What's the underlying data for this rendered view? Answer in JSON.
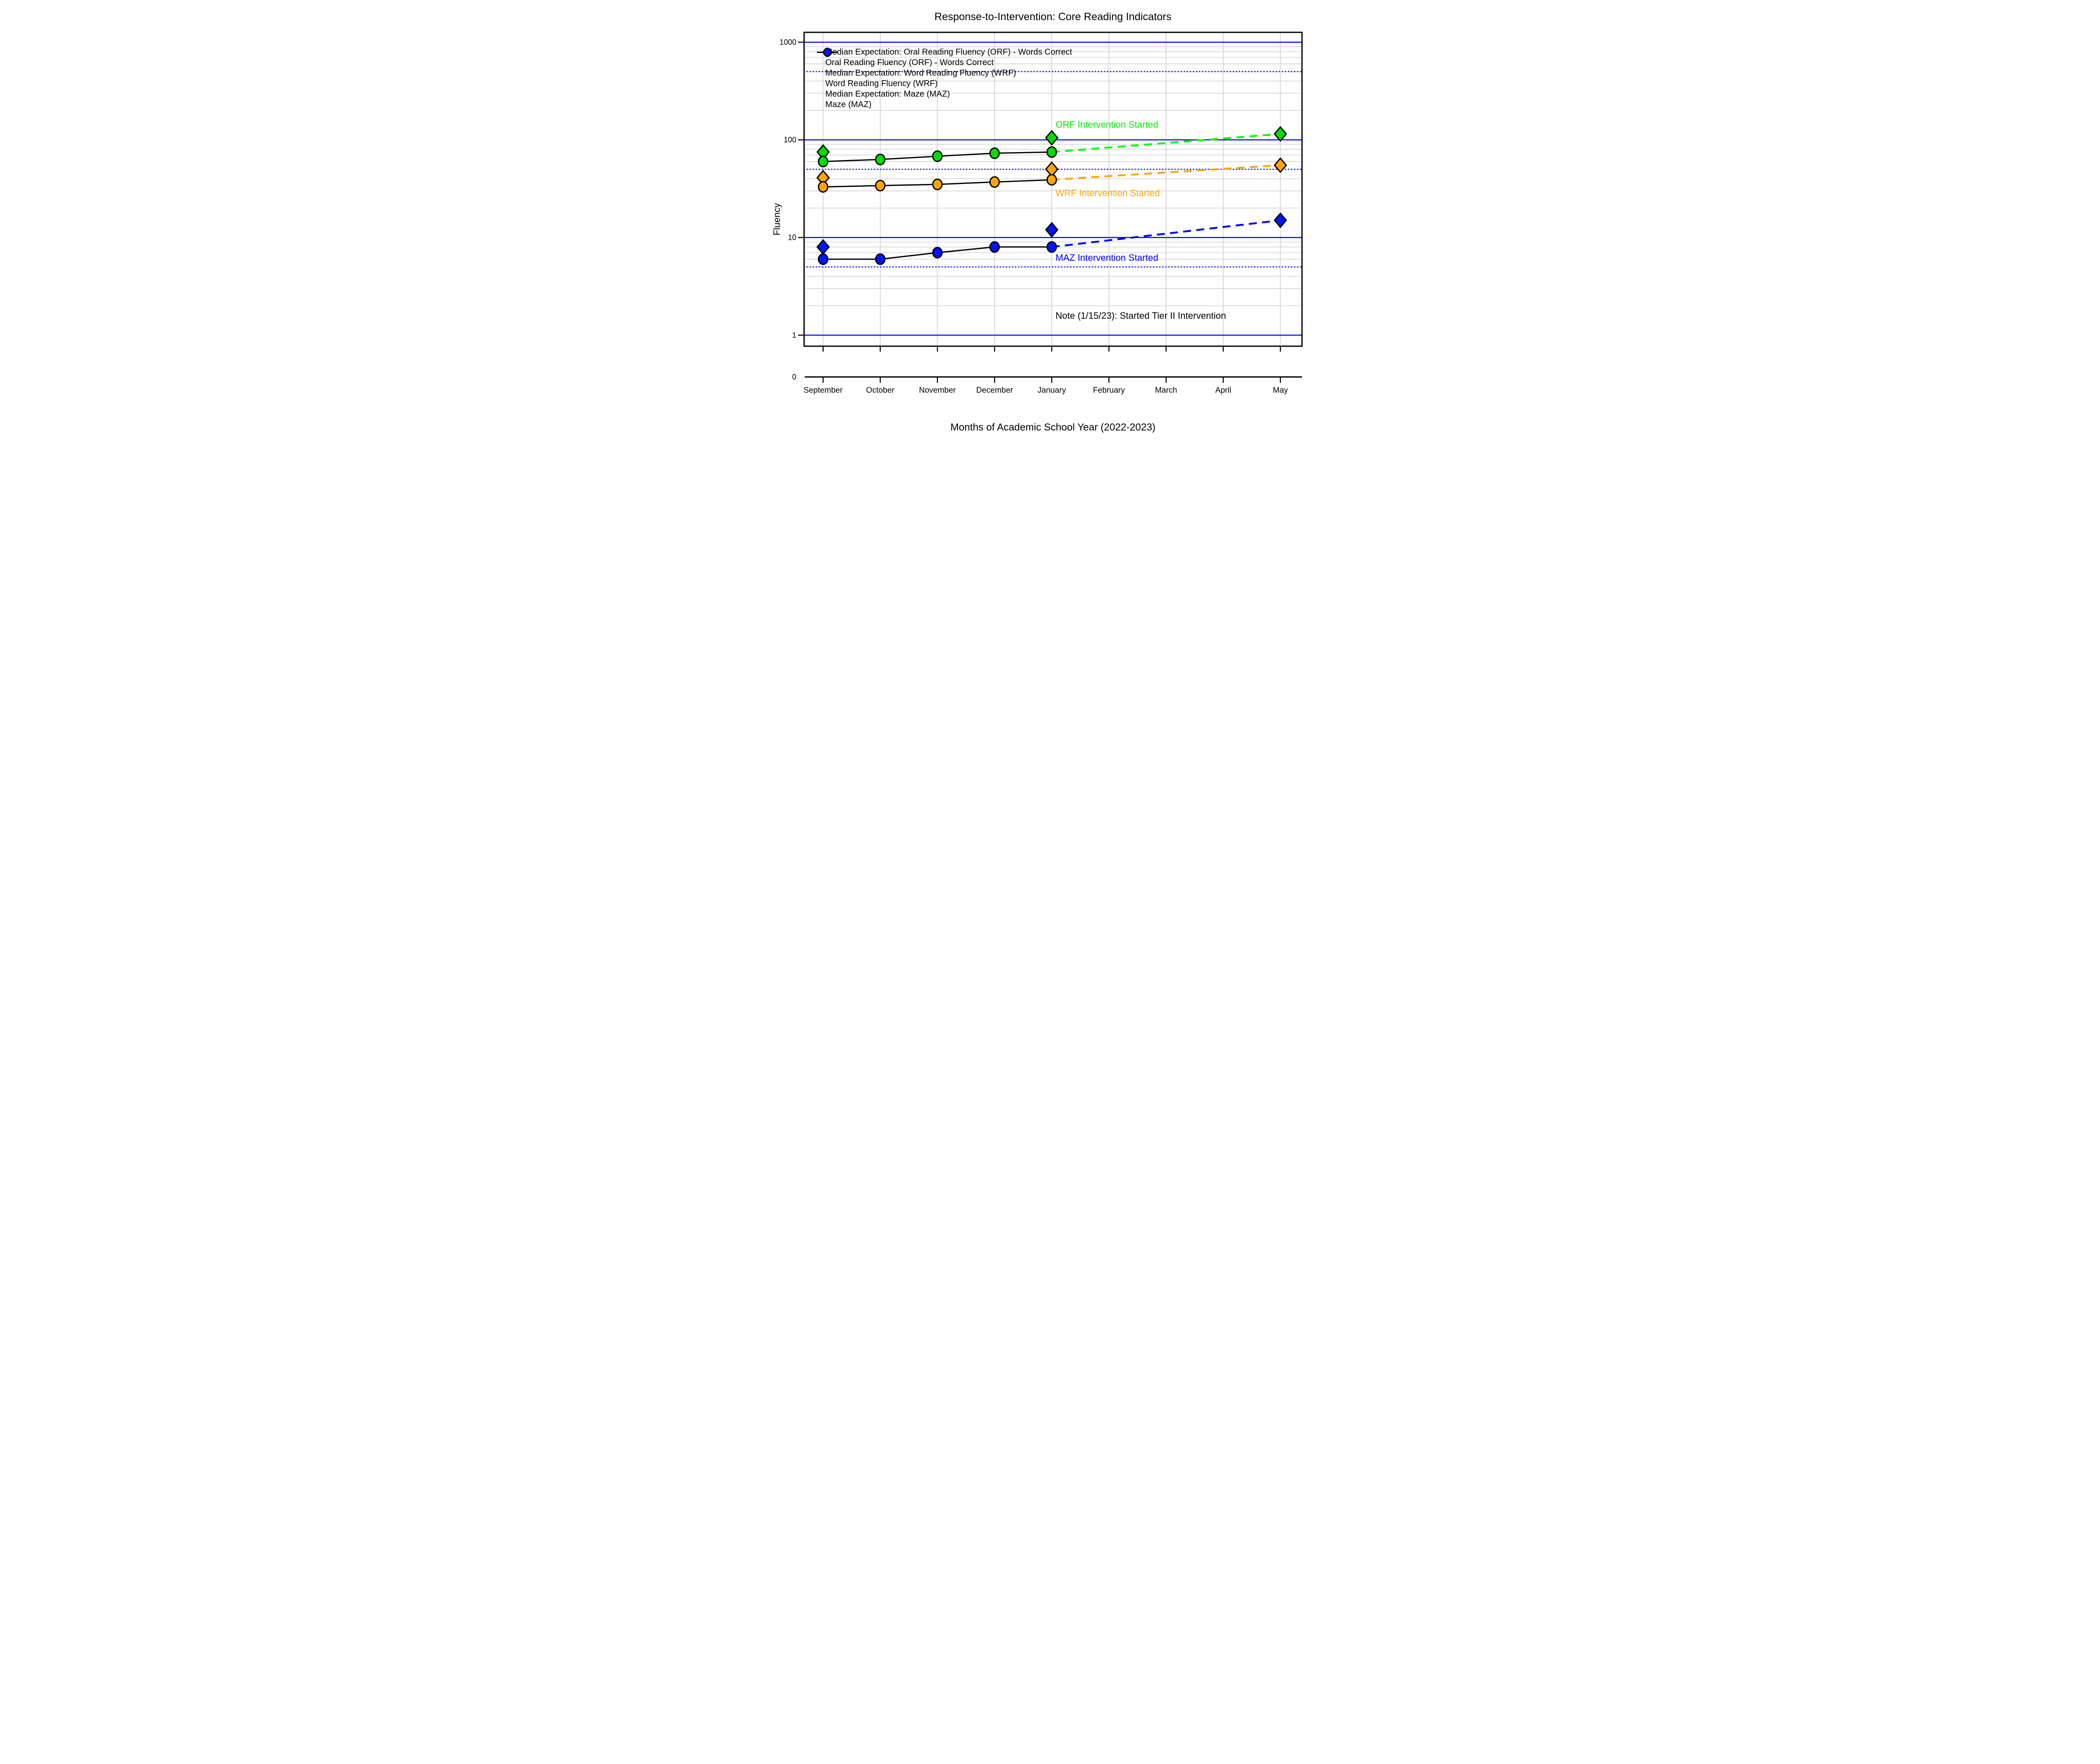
{
  "chart_data": {
    "type": "line",
    "title": "Response-to-Intervention: Core Reading Indicators",
    "xlabel": "Months of Academic School Year (2022-2023)",
    "ylabel": "Fluency",
    "y_scale": "log",
    "ylim": [
      1,
      1000
    ],
    "y_tick_labels": [
      "1000",
      "100",
      "10",
      "1"
    ],
    "y_tick_values": [
      1000,
      100,
      10,
      1
    ],
    "baseline_label": "0",
    "categories": [
      "September",
      "October",
      "November",
      "December",
      "January",
      "February",
      "March",
      "April",
      "May"
    ],
    "gridlines": {
      "solid_blue_at": [
        1,
        10,
        100,
        1000
      ],
      "dotted_blue_at": [
        5,
        50,
        500
      ],
      "minor_gray": "log minors 2-9 in each decade",
      "vertical_gray": "one per month",
      "blue_color": "#0000ee",
      "gray_color": "#d6d6d6"
    },
    "legend_position": "top-left",
    "series": [
      {
        "name": "Median Expectation: Oral Reading Fluency (ORF) - Words Correct",
        "marker": "diamond",
        "line": "none",
        "color": "#00dc00",
        "months": [
          "September",
          "January",
          "May"
        ],
        "values": [
          75,
          105,
          115
        ]
      },
      {
        "name": "Oral Reading Fluency (ORF) - Words Correct",
        "marker": "circle",
        "line": "solid-black",
        "color": "#00dc00",
        "months": [
          "September",
          "October",
          "November",
          "December",
          "January"
        ],
        "values": [
          60,
          63,
          68,
          73,
          75
        ]
      },
      {
        "name": "Median Expectation: Word Reading Fluency (WRF)",
        "marker": "diamond",
        "line": "none",
        "color": "#ffa500",
        "months": [
          "September",
          "January",
          "May"
        ],
        "values": [
          41,
          50,
          55
        ]
      },
      {
        "name": "Word Reading Fluency (WRF)",
        "marker": "circle",
        "line": "solid-black",
        "color": "#ffa500",
        "months": [
          "September",
          "October",
          "November",
          "December",
          "January"
        ],
        "values": [
          33,
          34,
          35,
          37,
          39
        ]
      },
      {
        "name": "Median Expectation: Maze (MAZ)",
        "marker": "diamond",
        "line": "none",
        "color": "#0014ff",
        "months": [
          "September",
          "January",
          "May"
        ],
        "values": [
          8,
          12,
          15
        ]
      },
      {
        "name": "Maze (MAZ)",
        "marker": "circle",
        "line": "solid-black",
        "color": "#0014ff",
        "months": [
          "September",
          "October",
          "November",
          "December",
          "January"
        ],
        "values": [
          6,
          6,
          7,
          8,
          8
        ]
      }
    ],
    "projections": [
      {
        "series": "ORF",
        "color": "#00ff00",
        "from_month": "January",
        "from_value": 75,
        "to_month": "May",
        "to_value": 115
      },
      {
        "series": "WRF",
        "color": "#ffa500",
        "from_month": "January",
        "from_value": 39,
        "to_month": "May",
        "to_value": 55
      },
      {
        "series": "MAZ",
        "color": "#0000ff",
        "from_month": "January",
        "from_value": 8,
        "to_month": "May",
        "to_value": 15
      }
    ],
    "annotations": [
      {
        "text": "ORF Intervention Started",
        "color": "#00ee00",
        "month": "January",
        "y_value": 143
      },
      {
        "text": "WRF Intervention Started",
        "color": "#ffa500",
        "month": "January",
        "y_value": 28.5
      },
      {
        "text": "MAZ Intervention Started",
        "color": "#0000ff",
        "month": "January",
        "y_value": 6.2
      },
      {
        "text": "Note (1/15/23): Started Tier II Intervention",
        "color": "#000000",
        "month": "January",
        "y_value": 1.57
      }
    ]
  }
}
